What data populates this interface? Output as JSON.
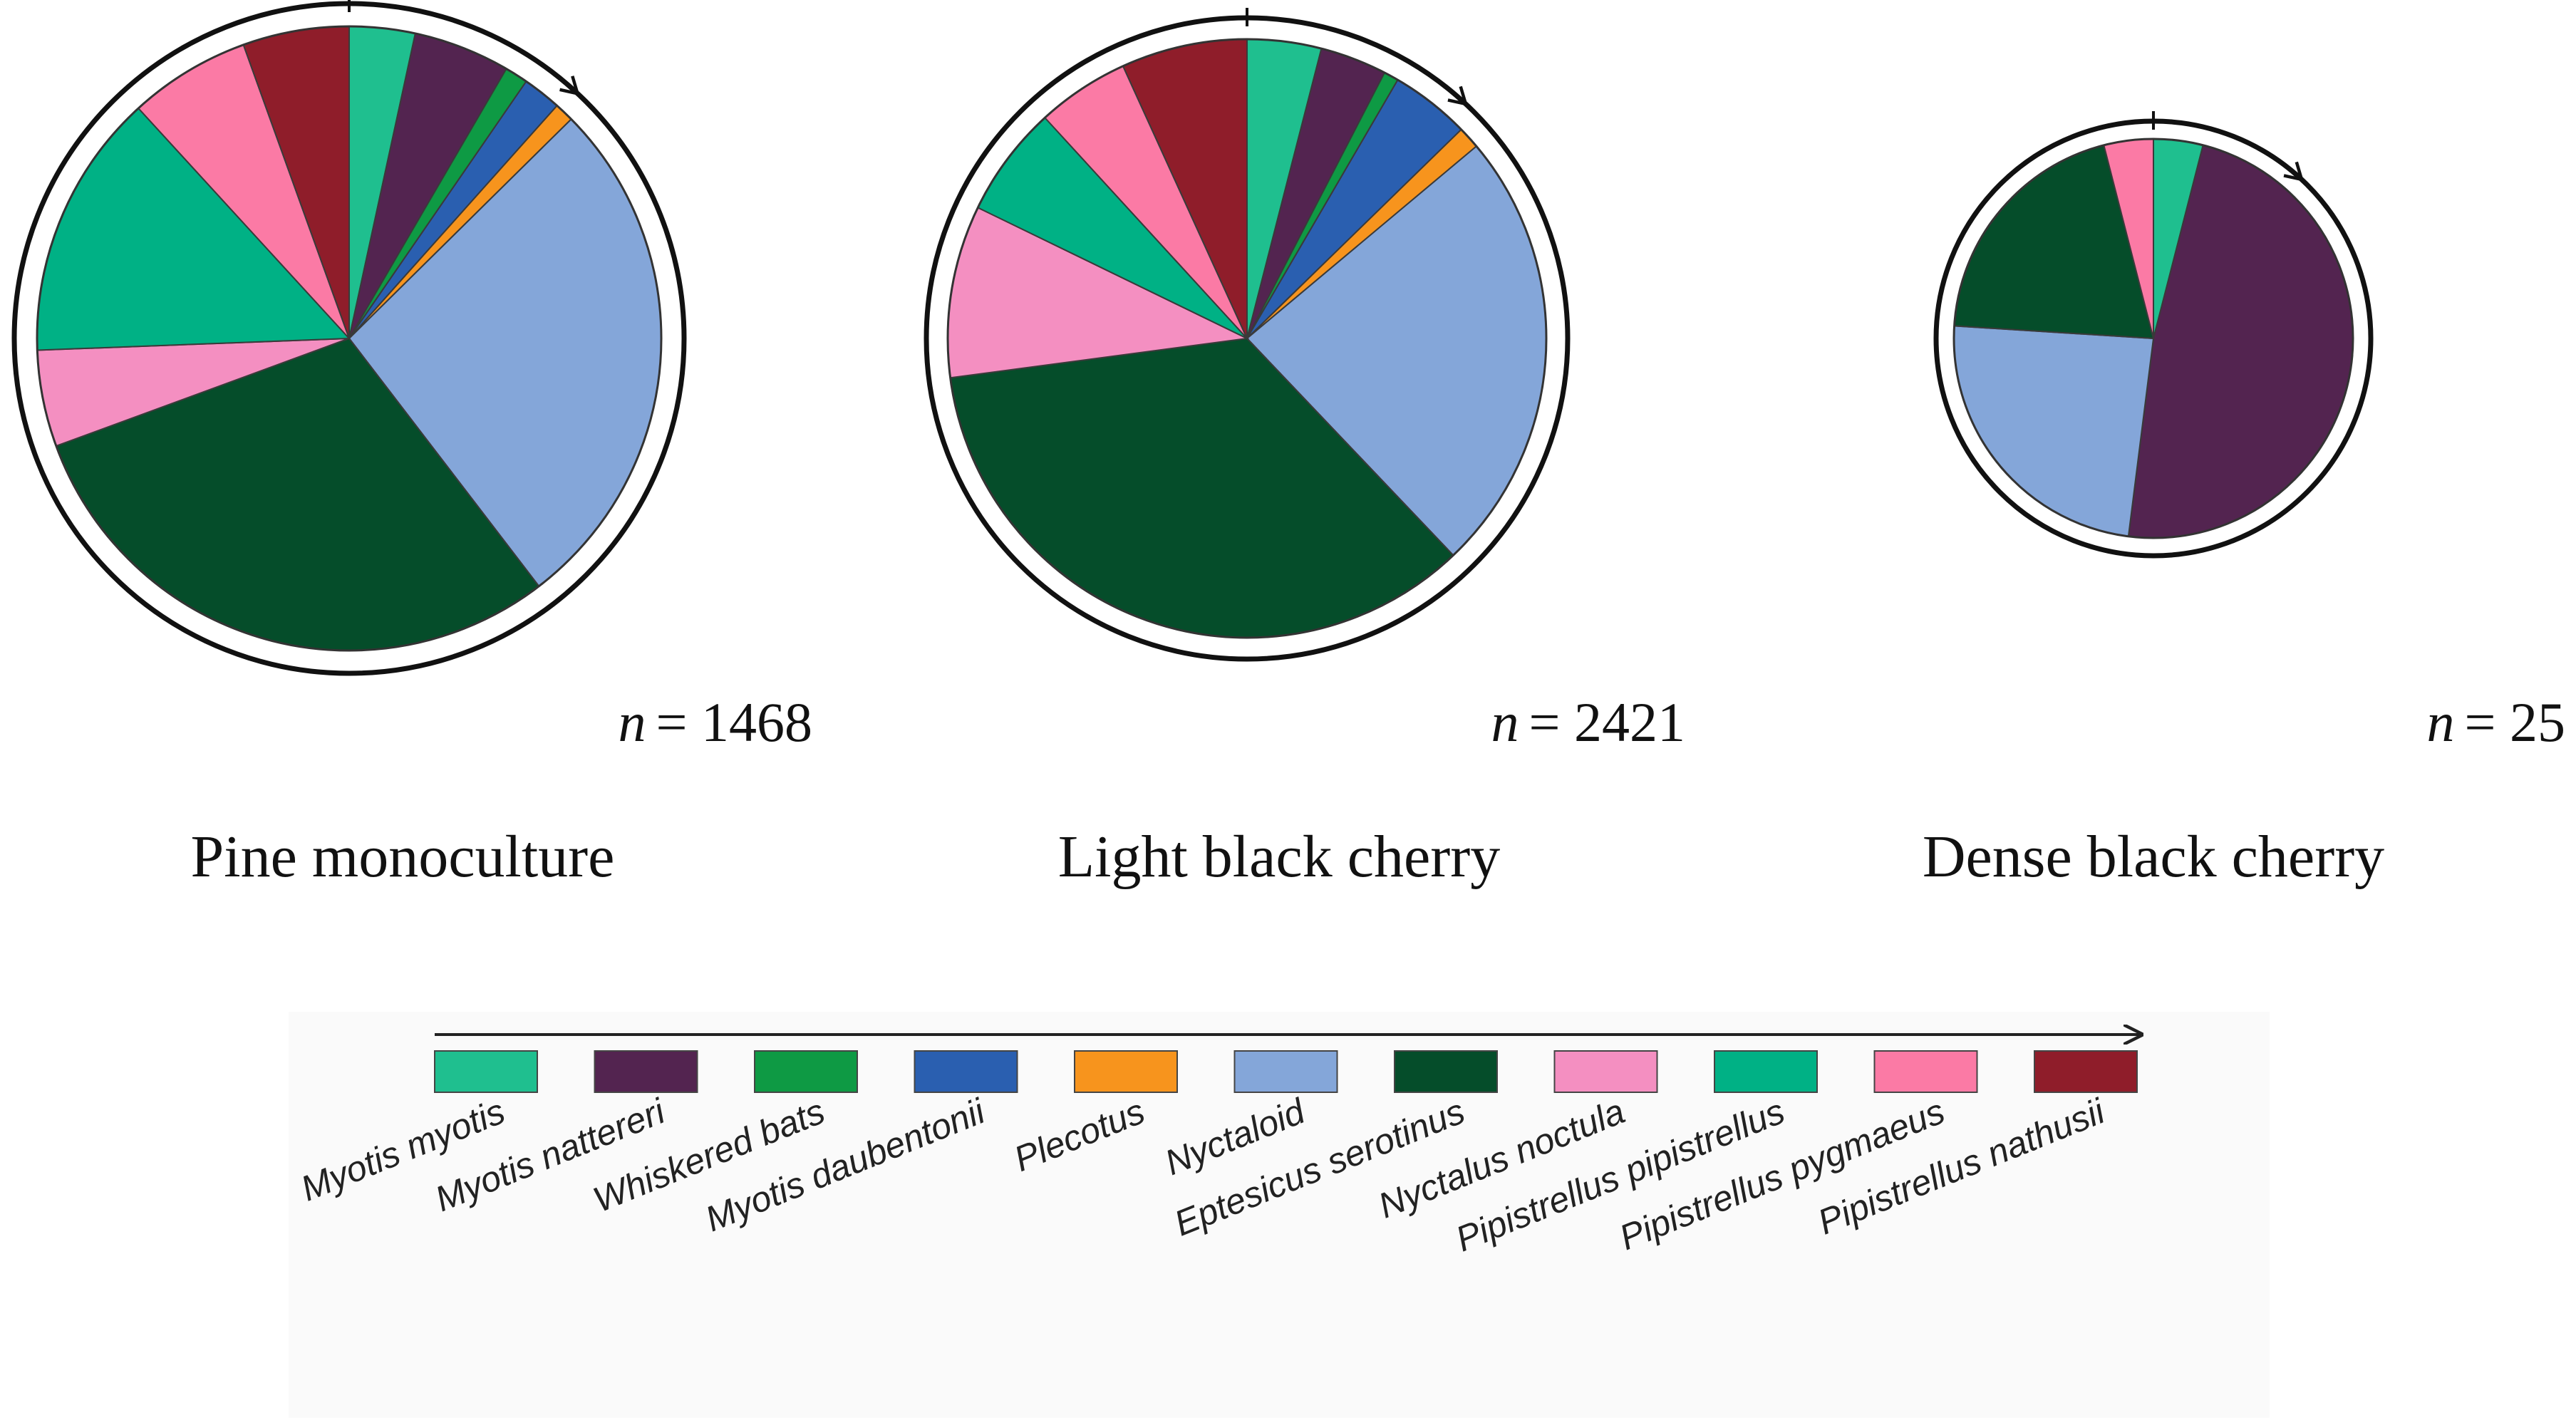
{
  "species": [
    {
      "name": "Myotis myotis",
      "color": "#1fbf8f"
    },
    {
      "name": "Myotis nattereri",
      "color": "#532450"
    },
    {
      "name": "Whiskered bats",
      "color": "#0e9a44"
    },
    {
      "name": "Myotis daubentonii",
      "color": "#2a5fb0"
    },
    {
      "name": "Plecotus",
      "color": "#f7941d"
    },
    {
      "name": "Nyctaloid",
      "color": "#84a6d9"
    },
    {
      "name": "Eptesicus serotinus",
      "color": "#054d2a"
    },
    {
      "name": "Nyctalus noctula",
      "color": "#f48fc1"
    },
    {
      "name": "Pipistrellus pipistrellus",
      "color": "#00b185"
    },
    {
      "name": "Pipistrellus pygmaeus",
      "color": "#fb7aa5"
    },
    {
      "name": "Pipistrellus nathusii",
      "color": "#8f1d2a"
    }
  ],
  "chart_data": [
    {
      "type": "pie",
      "title": "Pine monoculture",
      "n_label": "= 1468",
      "n_symbol": "n",
      "categories": [
        "Myotis myotis",
        "Myotis nattereri",
        "Whiskered bats",
        "Myotis daubentonii",
        "Plecotus",
        "Nyctaloid",
        "Eptesicus serotinus",
        "Nyctalus noctula",
        "Pipistrellus pipistrellus",
        "Pipistrellus pygmaeus",
        "Pipistrellus nathusii"
      ],
      "values": [
        3.4,
        5.0,
        1.2,
        2.0,
        1.0,
        27.0,
        29.8,
        5.0,
        13.8,
        6.3,
        5.5
      ],
      "unit": "percent",
      "start": "12 o'clock",
      "direction": "clockwise"
    },
    {
      "type": "pie",
      "title": "Light black cherry",
      "n_label": "= 2421",
      "n_symbol": "n",
      "categories": [
        "Myotis myotis",
        "Myotis nattereri",
        "Whiskered bats",
        "Myotis daubentonii",
        "Plecotus",
        "Nyctaloid",
        "Eptesicus serotinus",
        "Nyctalus noctula",
        "Pipistrellus pipistrellus",
        "Pipistrellus pygmaeus",
        "Pipistrellus nathusii"
      ],
      "values": [
        4.0,
        3.6,
        0.8,
        4.3,
        1.2,
        24.0,
        35.0,
        9.3,
        6.0,
        5.0,
        6.8
      ],
      "unit": "percent",
      "start": "12 o'clock",
      "direction": "clockwise"
    },
    {
      "type": "pie",
      "title": "Dense black cherry",
      "n_label": "= 25",
      "n_symbol": "n",
      "categories": [
        "Myotis myotis",
        "Myotis nattereri",
        "Nyctaloid",
        "Eptesicus serotinus",
        "Pipistrellus pygmaeus"
      ],
      "values": [
        4.0,
        48.0,
        24.0,
        20.0,
        4.0
      ],
      "unit": "percent",
      "start": "12 o'clock",
      "direction": "clockwise"
    }
  ]
}
